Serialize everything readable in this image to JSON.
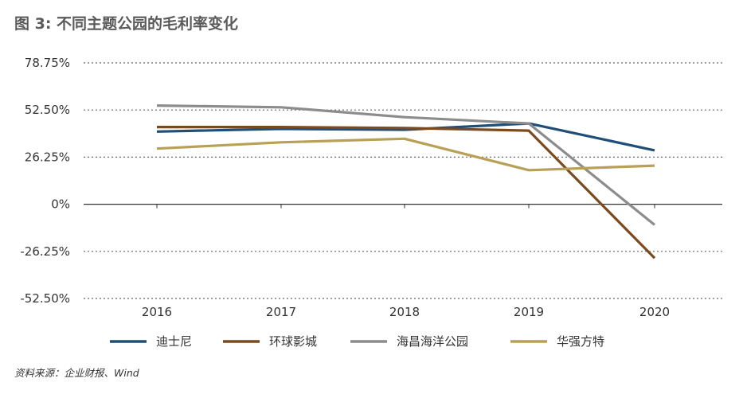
{
  "title": "图 3: 不同主题公园的毛利率变化",
  "source": "资料来源：企业财报、Wind",
  "colors": {
    "迪士尼": "#1f4e79",
    "环球影城": "#7b4a1e",
    "海昌海洋公园": "#8c8c8c",
    "华强方特": "#b8a057"
  },
  "chart_data": {
    "type": "line",
    "title": "图 3: 不同主题公园的毛利率变化",
    "xlabel": "",
    "ylabel": "",
    "categories": [
      "2016",
      "2017",
      "2018",
      "2019",
      "2020"
    ],
    "y_ticks": [
      "78.75%",
      "52.50%",
      "26.25%",
      "0%",
      "-26.25%",
      "-52.50%"
    ],
    "y_tick_values": [
      78.75,
      52.5,
      26.25,
      0,
      -26.25,
      -52.5
    ],
    "ylim": [
      -52.5,
      78.75
    ],
    "grid": "dotted horizontal",
    "legend_position": "bottom",
    "series": [
      {
        "name": "迪士尼",
        "values": [
          40.5,
          42.0,
          41.5,
          45.0,
          30.0
        ]
      },
      {
        "name": "环球影城",
        "values": [
          43.0,
          43.0,
          42.5,
          41.0,
          -30.0
        ]
      },
      {
        "name": "海昌海洋公园",
        "values": [
          55.0,
          54.0,
          48.5,
          45.0,
          -11.5
        ]
      },
      {
        "name": "华强方特",
        "values": [
          31.0,
          34.5,
          36.5,
          19.0,
          21.5
        ]
      }
    ]
  }
}
